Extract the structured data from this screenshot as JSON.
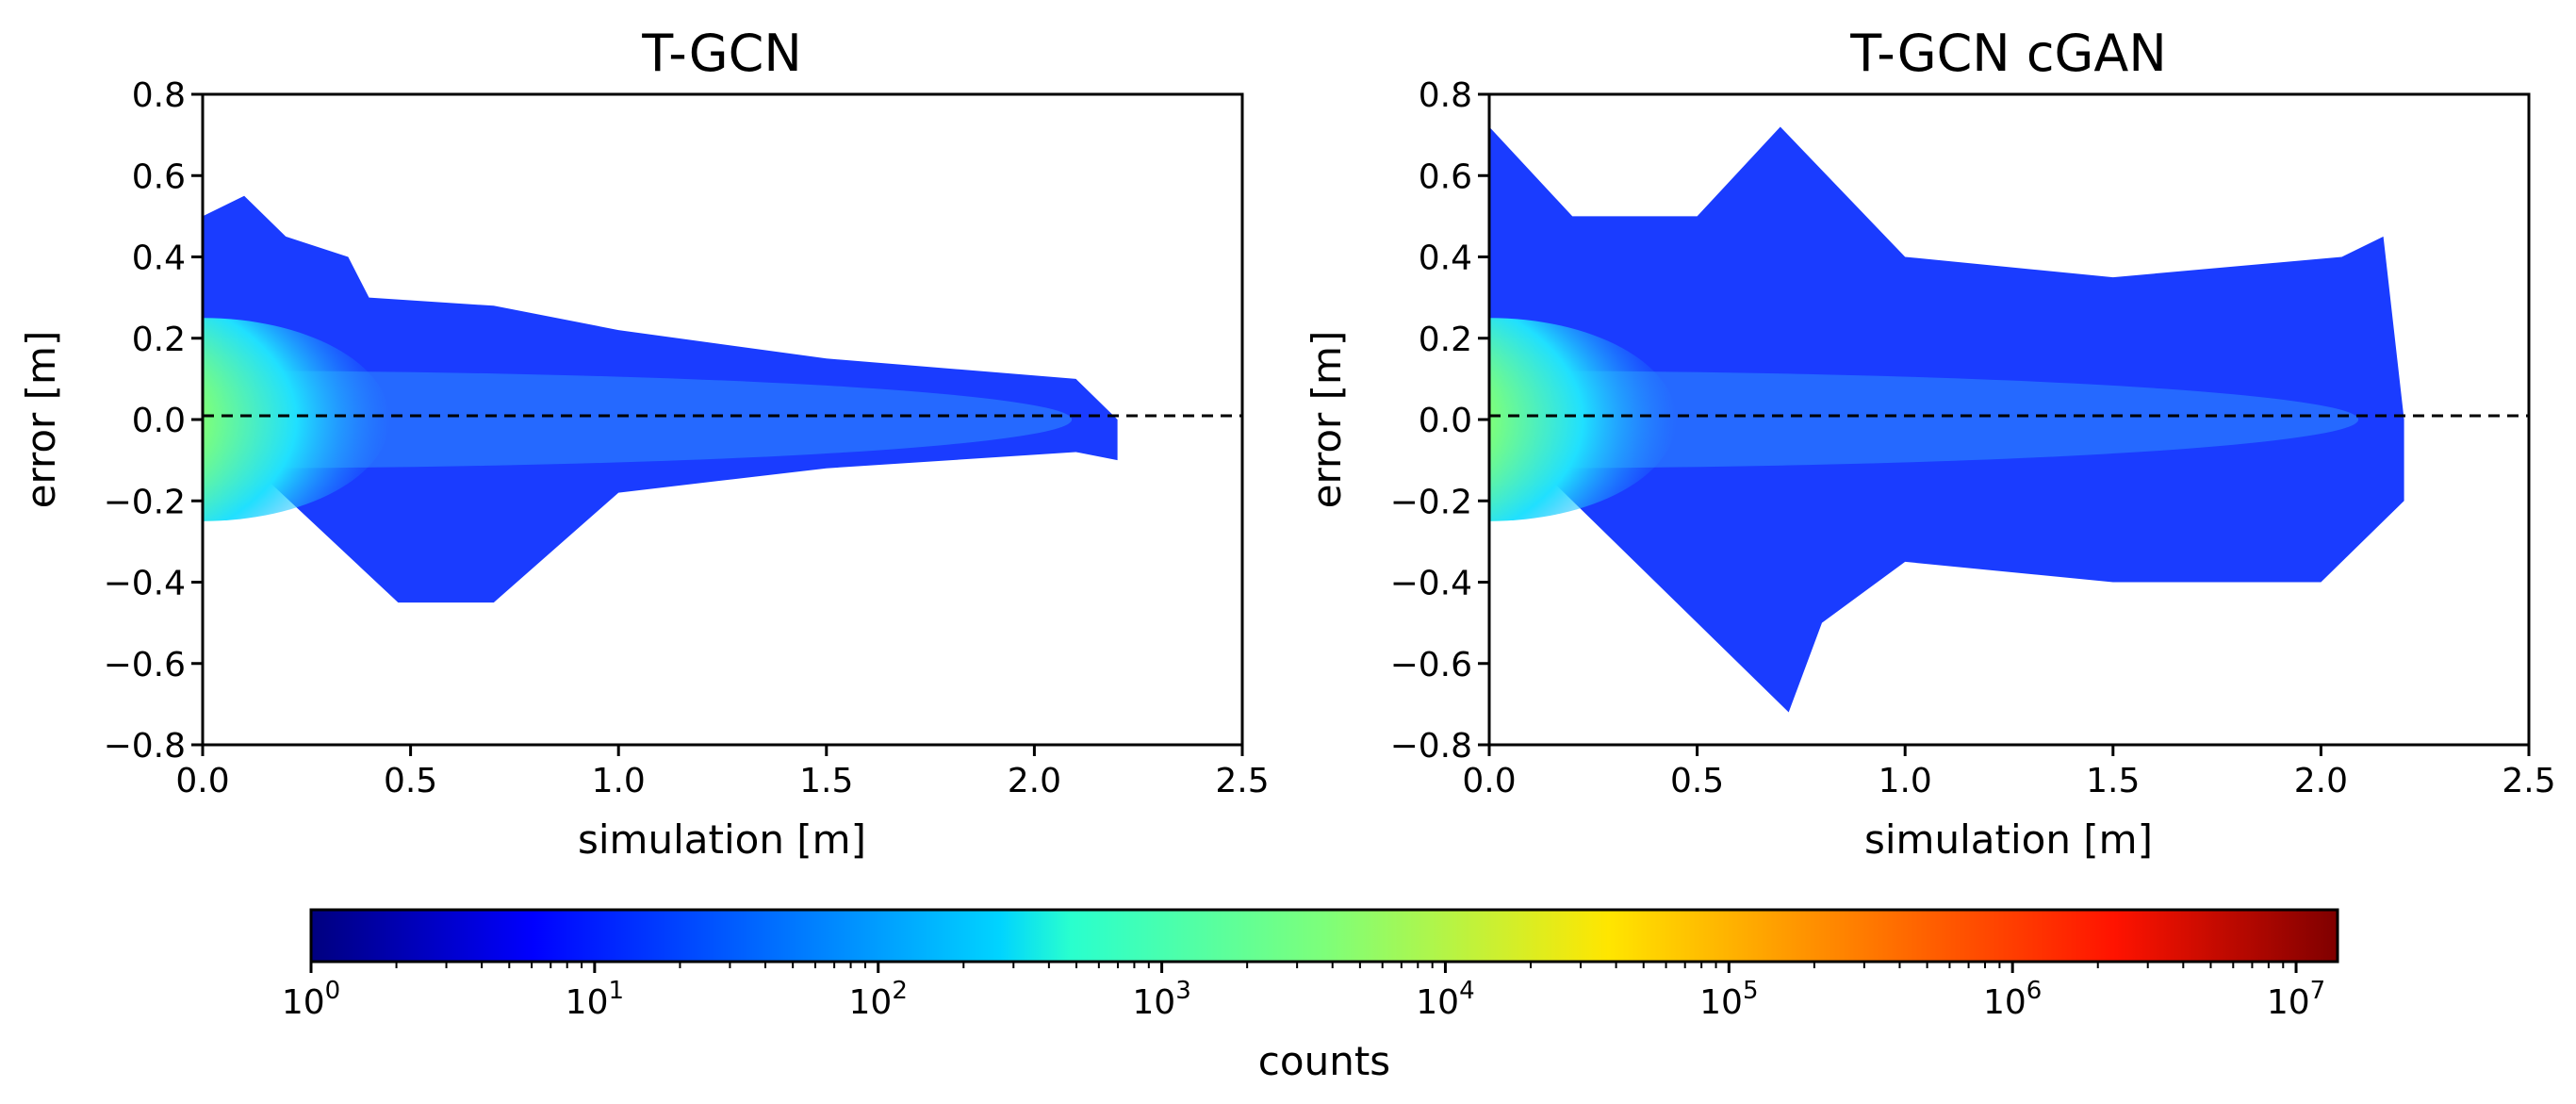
{
  "chart_data": [
    {
      "type": "heatmap",
      "title": "T-GCN",
      "xlabel": "simulation [m]",
      "ylabel": "error [m]",
      "xlim": [
        0.0,
        2.5
      ],
      "ylim": [
        -0.8,
        0.8
      ],
      "xticks": [
        0.0,
        0.5,
        1.0,
        1.5,
        2.0,
        2.5
      ],
      "xtick_labels": [
        "0.0",
        "0.5",
        "1.0",
        "1.5",
        "2.0",
        "2.5"
      ],
      "yticks": [
        0.8,
        0.6,
        0.4,
        0.2,
        0.0,
        -0.2,
        -0.4,
        -0.6,
        -0.8
      ],
      "ytick_labels": [
        "0.8",
        "0.6",
        "0.4",
        "0.2",
        "0.0",
        "−0.2",
        "−0.4",
        "−0.6",
        "−0.8"
      ],
      "reference_line": {
        "y": 0.0,
        "style": "dashed"
      },
      "data_extent": {
        "x_max": 2.2,
        "upper_envelope": [
          [
            0.0,
            0.5
          ],
          [
            0.1,
            0.55
          ],
          [
            0.2,
            0.45
          ],
          [
            0.35,
            0.4
          ],
          [
            0.4,
            0.3
          ],
          [
            0.7,
            0.28
          ],
          [
            1.0,
            0.22
          ],
          [
            1.5,
            0.15
          ],
          [
            2.1,
            0.1
          ],
          [
            2.2,
            0.0
          ]
        ],
        "lower_envelope": [
          [
            0.0,
            0.0
          ],
          [
            0.47,
            -0.45
          ],
          [
            0.7,
            -0.45
          ],
          [
            1.0,
            -0.18
          ],
          [
            1.5,
            -0.12
          ],
          [
            2.1,
            -0.08
          ],
          [
            2.2,
            -0.1
          ]
        ]
      }
    },
    {
      "type": "heatmap",
      "title": "T-GCN cGAN",
      "xlabel": "simulation [m]",
      "ylabel": "error [m]",
      "xlim": [
        0.0,
        2.5
      ],
      "ylim": [
        -0.8,
        0.8
      ],
      "xticks": [
        0.0,
        0.5,
        1.0,
        1.5,
        2.0,
        2.5
      ],
      "xtick_labels": [
        "0.0",
        "0.5",
        "1.0",
        "1.5",
        "2.0",
        "2.5"
      ],
      "yticks": [
        0.8,
        0.6,
        0.4,
        0.2,
        0.0,
        -0.2,
        -0.4,
        -0.6,
        -0.8
      ],
      "ytick_labels": [
        "0.8",
        "0.6",
        "0.4",
        "0.2",
        "0.0",
        "−0.2",
        "−0.4",
        "−0.6",
        "−0.8"
      ],
      "reference_line": {
        "y": 0.0,
        "style": "dashed"
      },
      "data_extent": {
        "x_max": 2.2,
        "upper_envelope": [
          [
            0.0,
            0.72
          ],
          [
            0.2,
            0.5
          ],
          [
            0.5,
            0.5
          ],
          [
            0.7,
            0.72
          ],
          [
            1.0,
            0.4
          ],
          [
            1.5,
            0.35
          ],
          [
            2.05,
            0.4
          ],
          [
            2.15,
            0.45
          ],
          [
            2.2,
            0.0
          ]
        ],
        "lower_envelope": [
          [
            0.0,
            0.0
          ],
          [
            0.72,
            -0.72
          ],
          [
            0.8,
            -0.5
          ],
          [
            1.0,
            -0.35
          ],
          [
            1.5,
            -0.4
          ],
          [
            2.0,
            -0.4
          ],
          [
            2.2,
            -0.2
          ]
        ]
      }
    }
  ],
  "colorbar": {
    "label": "counts",
    "scale": "log",
    "min": 1,
    "max": 14000000,
    "colormap": "jet",
    "tick_bases": [
      "10",
      "10",
      "10",
      "10",
      "10",
      "10",
      "10",
      "10"
    ],
    "tick_exponents": [
      "0",
      "1",
      "2",
      "3",
      "4",
      "5",
      "6",
      "7"
    ]
  }
}
